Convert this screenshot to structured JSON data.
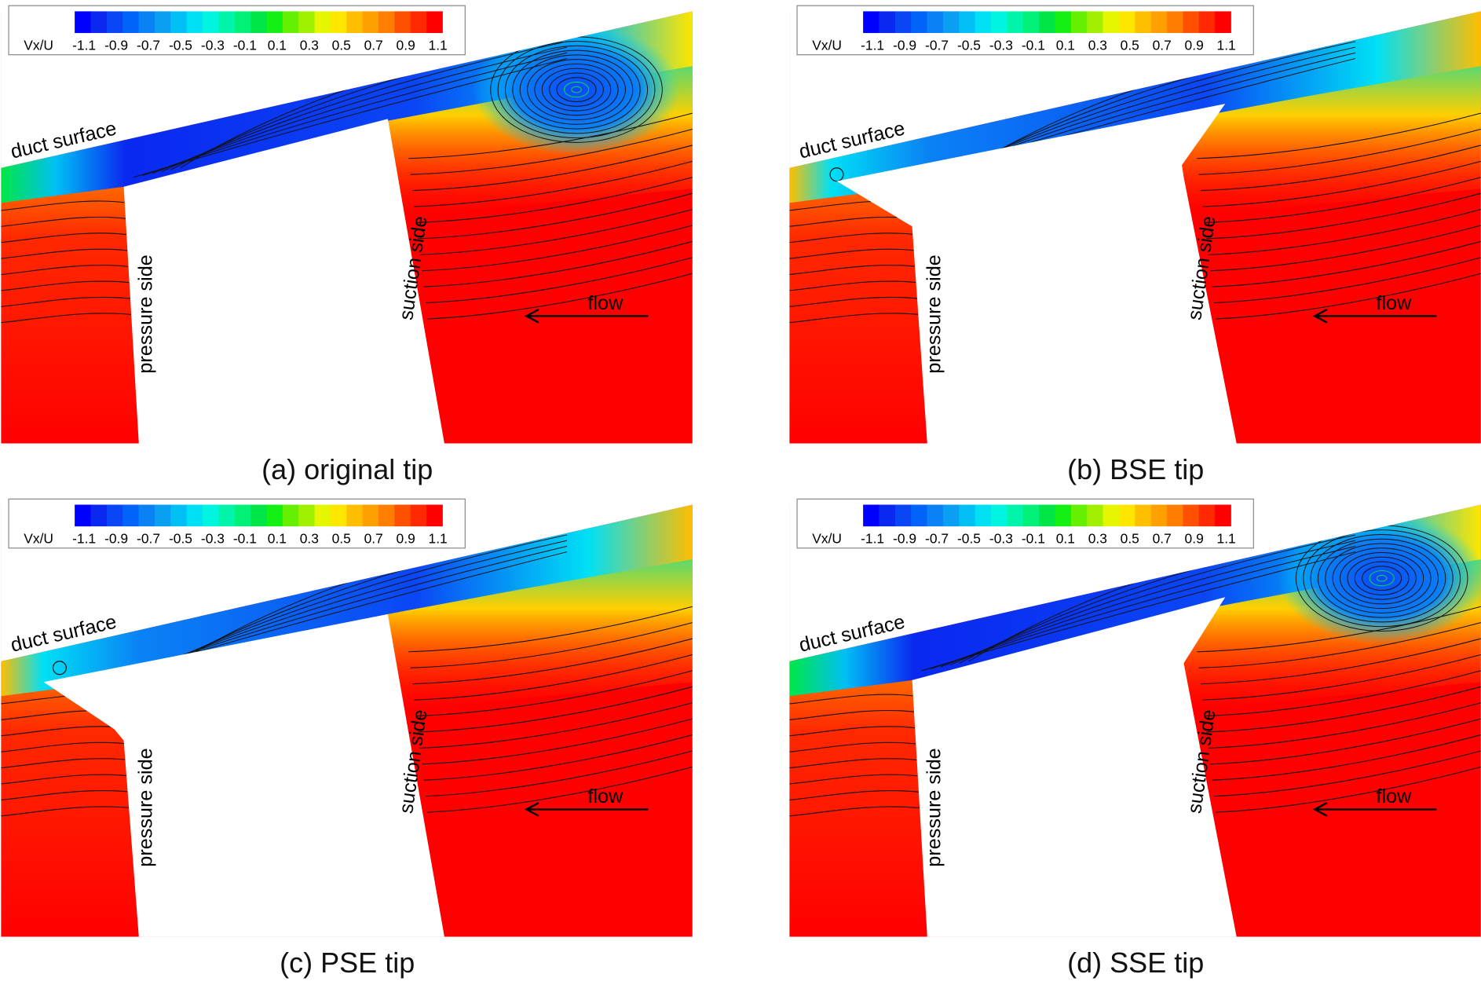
{
  "legend": {
    "variable": "Vx/U",
    "ticks": [
      "-1.1",
      "-0.9",
      "-0.7",
      "-0.5",
      "-0.3",
      "-0.1",
      "0.1",
      "0.3",
      "0.5",
      "0.7",
      "0.9",
      "1.1"
    ],
    "colors": [
      "#0000ff",
      "#0a28f0",
      "#0a46f5",
      "#0064fa",
      "#0a82f5",
      "#0a9ff0",
      "#00bff5",
      "#00e0f5",
      "#00f5e0",
      "#00f5aa",
      "#00f078",
      "#00e646",
      "#14f014",
      "#64f000",
      "#a0f000",
      "#e6f500",
      "#ffe600",
      "#ffbe00",
      "#ffa000",
      "#ff7d00",
      "#ff5000",
      "#ff2800",
      "#ff0000"
    ]
  },
  "labels": {
    "duct": "duct surface",
    "pressure": "pressure side",
    "suction": "suction side",
    "flow": "flow"
  },
  "panels": [
    {
      "id": "a",
      "caption": "(a) original tip",
      "vortex": true
    },
    {
      "id": "b",
      "caption": "(b) BSE tip",
      "vortex": false
    },
    {
      "id": "c",
      "caption": "(c) PSE tip",
      "vortex": false
    },
    {
      "id": "d",
      "caption": "(d) SSE tip",
      "vortex": true
    }
  ]
}
